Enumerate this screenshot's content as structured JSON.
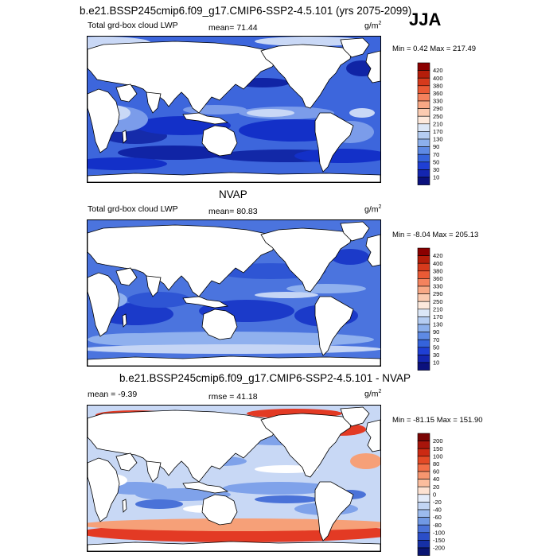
{
  "header": {
    "title": "b.e21.BSSP245cmip6.f09_g17.CMIP6-SSP2-4.5.101 (yrs 2075-2099)",
    "season": "JJA"
  },
  "panels": [
    {
      "id": "model",
      "title": "",
      "left_label": "Total grd-box cloud LWP",
      "mid_label": "mean=  71.44",
      "units": "g/m",
      "units_exp": "2",
      "minmax": "Min =   0.42 Max = 217.49",
      "colorbar": {
        "levels": [
          "420",
          "400",
          "380",
          "360",
          "330",
          "290",
          "250",
          "210",
          "170",
          "130",
          "90",
          "70",
          "50",
          "30",
          "10"
        ],
        "colors": [
          "#8b0000",
          "#b51d0a",
          "#d63a1c",
          "#ea5a35",
          "#f4825d",
          "#f8a885",
          "#fbcbb1",
          "#fde9dc",
          "#dce7f7",
          "#b5cdf2",
          "#8cb0ec",
          "#5e8ae4",
          "#3563db",
          "#1f3fd4",
          "#1426b0",
          "#0b117d"
        ]
      }
    },
    {
      "id": "obs",
      "title": "NVAP",
      "left_label": "Total grd-box cloud LWP",
      "mid_label": "mean=  80.83",
      "units": "g/m",
      "units_exp": "2",
      "minmax": "Min =  -8.04 Max = 205.13",
      "colorbar": {
        "levels": [
          "420",
          "400",
          "380",
          "360",
          "330",
          "290",
          "250",
          "210",
          "170",
          "130",
          "90",
          "70",
          "50",
          "30",
          "10"
        ],
        "colors": [
          "#8b0000",
          "#b51d0a",
          "#d63a1c",
          "#ea5a35",
          "#f4825d",
          "#f8a885",
          "#fbcbb1",
          "#fde9dc",
          "#dce7f7",
          "#b5cdf2",
          "#8cb0ec",
          "#5e8ae4",
          "#3563db",
          "#1f3fd4",
          "#1426b0",
          "#0b117d"
        ]
      }
    },
    {
      "id": "diff",
      "title": "b.e21.BSSP245cmip6.f09_g17.CMIP6-SSP2-4.5.101 - NVAP",
      "left_label": "mean =  -9.39",
      "mid_label": "rmse =  41.18",
      "units": "g/m",
      "units_exp": "2",
      "minmax": "Min = -81.15 Max = 151.90",
      "colorbar": {
        "levels": [
          "200",
          "150",
          "100",
          "80",
          "60",
          "40",
          "20",
          "0",
          "-20",
          "-40",
          "-60",
          "-80",
          "-100",
          "-150",
          "-200"
        ],
        "colors": [
          "#7a0403",
          "#a8150b",
          "#cc2a13",
          "#e44a26",
          "#f26e47",
          "#f7966f",
          "#fbbd9d",
          "#fde2d2",
          "#e4ecfa",
          "#c2d5f4",
          "#9cbbee",
          "#7199e4",
          "#4a72d8",
          "#2b4ec8",
          "#1630a6",
          "#0a1572"
        ]
      }
    }
  ]
}
